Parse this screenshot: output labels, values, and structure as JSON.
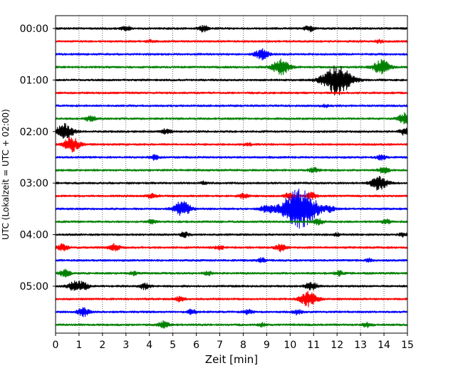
{
  "chart_data": {
    "type": "line",
    "subtype": "helicorder",
    "xlabel": "Zeit  [min]",
    "ylabel": "UTC (Lokalzeit = UTC + 02:00)",
    "xlim": [
      0,
      15
    ],
    "x_ticks": [
      "0",
      "1",
      "2",
      "3",
      "4",
      "5",
      "6",
      "7",
      "8",
      "9",
      "10",
      "11",
      "12",
      "13",
      "14",
      "15"
    ],
    "y_tick_labels": [
      "00:00",
      "01:00",
      "02:00",
      "03:00",
      "04:00",
      "05:00"
    ],
    "grid": "vertical dotted lines at each minute",
    "trace_interval_minutes": 15,
    "trace_colors": [
      "#000000",
      "#ff0000",
      "#0000ff",
      "#008000"
    ],
    "traces": [
      {
        "start": "00:00",
        "color": "#000000",
        "events": [
          {
            "t": 3.0,
            "amp": 0.2
          },
          {
            "t": 6.3,
            "amp": 0.25
          },
          {
            "t": 10.8,
            "amp": 0.25
          }
        ]
      },
      {
        "start": "00:15",
        "color": "#ff0000",
        "events": [
          {
            "t": 4.0,
            "amp": 0.1
          },
          {
            "t": 13.8,
            "amp": 0.12
          }
        ]
      },
      {
        "start": "00:30",
        "color": "#0000ff",
        "events": [
          {
            "t": 8.8,
            "amp": 0.45
          }
        ]
      },
      {
        "start": "00:45",
        "color": "#008000",
        "events": [
          {
            "t": 9.6,
            "amp": 0.65
          },
          {
            "t": 13.9,
            "amp": 0.6
          }
        ]
      },
      {
        "start": "01:00",
        "color": "#000000",
        "events": [
          {
            "t": 12.0,
            "amp": 1.3
          }
        ]
      },
      {
        "start": "01:15",
        "color": "#ff0000",
        "events": []
      },
      {
        "start": "01:30",
        "color": "#0000ff",
        "events": [
          {
            "t": 11.5,
            "amp": 0.1
          }
        ]
      },
      {
        "start": "01:45",
        "color": "#008000",
        "events": [
          {
            "t": 1.5,
            "amp": 0.25
          },
          {
            "t": 14.9,
            "amp": 0.45
          }
        ]
      },
      {
        "start": "02:00",
        "color": "#000000",
        "events": [
          {
            "t": 0.4,
            "amp": 0.65
          },
          {
            "t": 4.7,
            "amp": 0.2
          },
          {
            "t": 14.9,
            "amp": 0.3
          }
        ]
      },
      {
        "start": "02:15",
        "color": "#ff0000",
        "events": [
          {
            "t": 0.7,
            "amp": 0.6
          },
          {
            "t": 8.2,
            "amp": 0.1
          }
        ]
      },
      {
        "start": "02:30",
        "color": "#0000ff",
        "events": [
          {
            "t": 4.2,
            "amp": 0.2
          },
          {
            "t": 13.9,
            "amp": 0.2
          }
        ]
      },
      {
        "start": "02:45",
        "color": "#008000",
        "events": [
          {
            "t": 11.0,
            "amp": 0.2
          },
          {
            "t": 14.0,
            "amp": 0.25
          }
        ]
      },
      {
        "start": "03:00",
        "color": "#000000",
        "events": [
          {
            "t": 13.8,
            "amp": 0.6
          },
          {
            "t": 6.3,
            "amp": 0.12
          }
        ]
      },
      {
        "start": "03:15",
        "color": "#ff0000",
        "events": [
          {
            "t": 4.1,
            "amp": 0.2
          },
          {
            "t": 8.0,
            "amp": 0.2
          },
          {
            "t": 10.0,
            "amp": 0.3
          },
          {
            "t": 10.9,
            "amp": 0.3
          }
        ]
      },
      {
        "start": "03:30",
        "color": "#0000ff",
        "events": [
          {
            "t": 5.4,
            "amp": 0.65
          },
          {
            "t": 9.0,
            "amp": 0.35
          },
          {
            "t": 10.4,
            "amp": 1.7
          },
          {
            "t": 11.7,
            "amp": 0.2
          }
        ]
      },
      {
        "start": "03:45",
        "color": "#008000",
        "events": [
          {
            "t": 4.1,
            "amp": 0.15
          },
          {
            "t": 11.2,
            "amp": 0.25
          },
          {
            "t": 14.1,
            "amp": 0.2
          }
        ]
      },
      {
        "start": "04:00",
        "color": "#000000",
        "events": [
          {
            "t": 5.5,
            "amp": 0.2
          },
          {
            "t": 14.8,
            "amp": 0.15
          },
          {
            "t": 12.0,
            "amp": 0.1
          }
        ]
      },
      {
        "start": "04:15",
        "color": "#ff0000",
        "events": [
          {
            "t": 0.3,
            "amp": 0.3
          },
          {
            "t": 2.5,
            "amp": 0.3
          },
          {
            "t": 7.0,
            "amp": 0.15
          },
          {
            "t": 9.6,
            "amp": 0.3
          }
        ]
      },
      {
        "start": "04:30",
        "color": "#0000ff",
        "events": [
          {
            "t": 8.8,
            "amp": 0.2
          },
          {
            "t": 13.4,
            "amp": 0.15
          }
        ]
      },
      {
        "start": "04:45",
        "color": "#008000",
        "events": [
          {
            "t": 0.4,
            "amp": 0.3
          },
          {
            "t": 3.3,
            "amp": 0.15
          },
          {
            "t": 6.5,
            "amp": 0.15
          },
          {
            "t": 12.1,
            "amp": 0.2
          }
        ]
      },
      {
        "start": "05:00",
        "color": "#000000",
        "events": [
          {
            "t": 0.8,
            "amp": 0.4
          },
          {
            "t": 1.2,
            "amp": 0.3
          },
          {
            "t": 3.8,
            "amp": 0.25
          },
          {
            "t": 10.9,
            "amp": 0.35
          }
        ]
      },
      {
        "start": "05:15",
        "color": "#ff0000",
        "events": [
          {
            "t": 5.3,
            "amp": 0.2
          },
          {
            "t": 10.8,
            "amp": 0.65
          }
        ]
      },
      {
        "start": "05:30",
        "color": "#0000ff",
        "events": [
          {
            "t": 1.2,
            "amp": 0.35
          },
          {
            "t": 5.8,
            "amp": 0.2
          },
          {
            "t": 8.2,
            "amp": 0.2
          },
          {
            "t": 10.3,
            "amp": 0.2
          }
        ]
      },
      {
        "start": "05:45",
        "color": "#008000",
        "events": [
          {
            "t": 4.6,
            "amp": 0.3
          },
          {
            "t": 8.8,
            "amp": 0.15
          },
          {
            "t": 13.3,
            "amp": 0.2
          }
        ]
      }
    ]
  }
}
